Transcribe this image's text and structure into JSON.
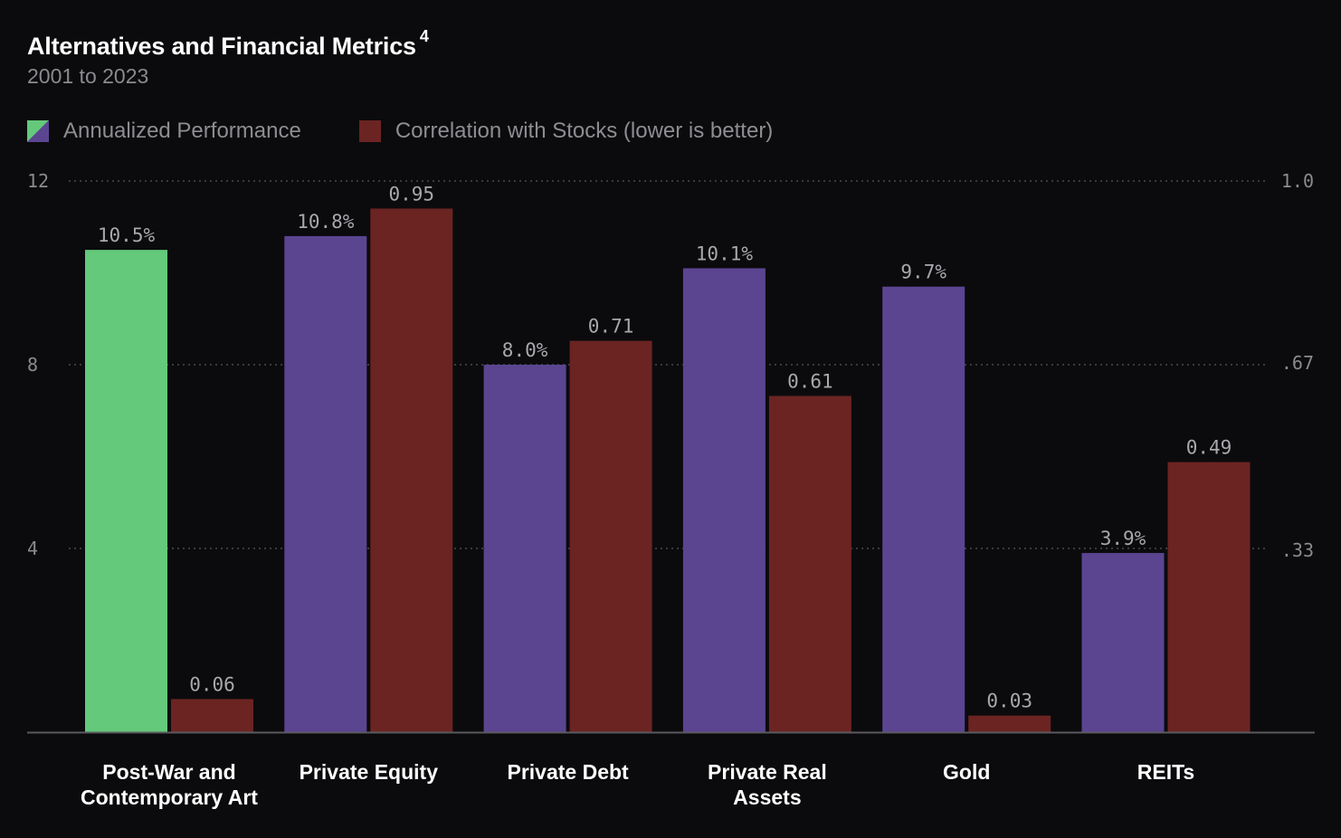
{
  "header": {
    "title": "Alternatives and Financial Metrics",
    "footnote": "4",
    "subtitle": "2001 to 2023"
  },
  "legend": {
    "items": [
      {
        "label": "Annualized Performance",
        "colors": [
          "#64c97a",
          "#5b4591"
        ]
      },
      {
        "label": "Correlation with Stocks (lower is better)",
        "colors": [
          "#6b2422"
        ]
      }
    ]
  },
  "chart_data": {
    "type": "bar",
    "categories": [
      [
        "Post-War and",
        "Contemporary Art"
      ],
      [
        "Private Equity"
      ],
      [
        "Private Debt"
      ],
      [
        "Private Real",
        "Assets"
      ],
      [
        "Gold"
      ],
      [
        "REITs"
      ]
    ],
    "series": [
      {
        "name": "Annualized Performance",
        "axis": "left",
        "values": [
          10.5,
          10.8,
          8.0,
          10.1,
          9.7,
          3.9
        ],
        "labels": [
          "10.5%",
          "10.8%",
          "8.0%",
          "10.1%",
          "9.7%",
          "3.9%"
        ],
        "color": "#5b4591",
        "highlight_color": "#64c97a",
        "highlight_index": 0
      },
      {
        "name": "Correlation with Stocks (lower is better)",
        "axis": "right",
        "values": [
          0.06,
          0.95,
          0.71,
          0.61,
          0.03,
          0.49
        ],
        "labels": [
          "0.06",
          "0.95",
          "0.71",
          "0.61",
          "0.03",
          "0.49"
        ],
        "color": "#6b2422"
      }
    ],
    "left_axis": {
      "ylim": [
        0,
        12
      ],
      "ticks": [
        4,
        8,
        12
      ],
      "tick_labels": [
        "4",
        "8",
        "12"
      ]
    },
    "right_axis": {
      "ylim": [
        0,
        1.0
      ],
      "ticks": [
        0.33,
        0.67,
        1.0
      ],
      "tick_labels": [
        ".33",
        ".67",
        "1.0"
      ]
    },
    "grid": true,
    "grid_style": "dotted",
    "legend_position": "top-left"
  },
  "colors": {
    "background": "#0b0b0d",
    "grid": "#4a4a4e",
    "baseline": "#5a5a5e"
  }
}
